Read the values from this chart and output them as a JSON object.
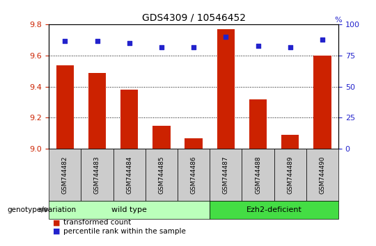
{
  "title": "GDS4309 / 10546452",
  "samples": [
    "GSM744482",
    "GSM744483",
    "GSM744484",
    "GSM744485",
    "GSM744486",
    "GSM744487",
    "GSM744488",
    "GSM744489",
    "GSM744490"
  ],
  "transformed_counts": [
    9.54,
    9.49,
    9.38,
    9.15,
    9.07,
    9.77,
    9.32,
    9.09,
    9.6
  ],
  "percentile_ranks": [
    87,
    87,
    85,
    82,
    82,
    90,
    83,
    82,
    88
  ],
  "ylim_left": [
    9.0,
    9.8
  ],
  "ylim_right": [
    0,
    100
  ],
  "yticks_left": [
    9.0,
    9.2,
    9.4,
    9.6,
    9.8
  ],
  "yticks_right": [
    0,
    25,
    50,
    75,
    100
  ],
  "bar_color": "#cc2200",
  "dot_color": "#2222cc",
  "bar_width": 0.55,
  "group_wild_label": "wild type",
  "group_wild_color": "#bbffbb",
  "group_wild_count": 5,
  "group_ezh_label": "Ezh2-deficient",
  "group_ezh_color": "#44dd44",
  "group_ezh_count": 4,
  "legend_items": [
    {
      "label": "transformed count",
      "color": "#cc2200"
    },
    {
      "label": "percentile rank within the sample",
      "color": "#2222cc"
    }
  ],
  "axis_color_left": "#cc2200",
  "axis_color_right": "#2222cc",
  "bg_color": "#ffffff",
  "xtick_bg_color": "#cccccc",
  "genotype_label": "genotype/variation"
}
